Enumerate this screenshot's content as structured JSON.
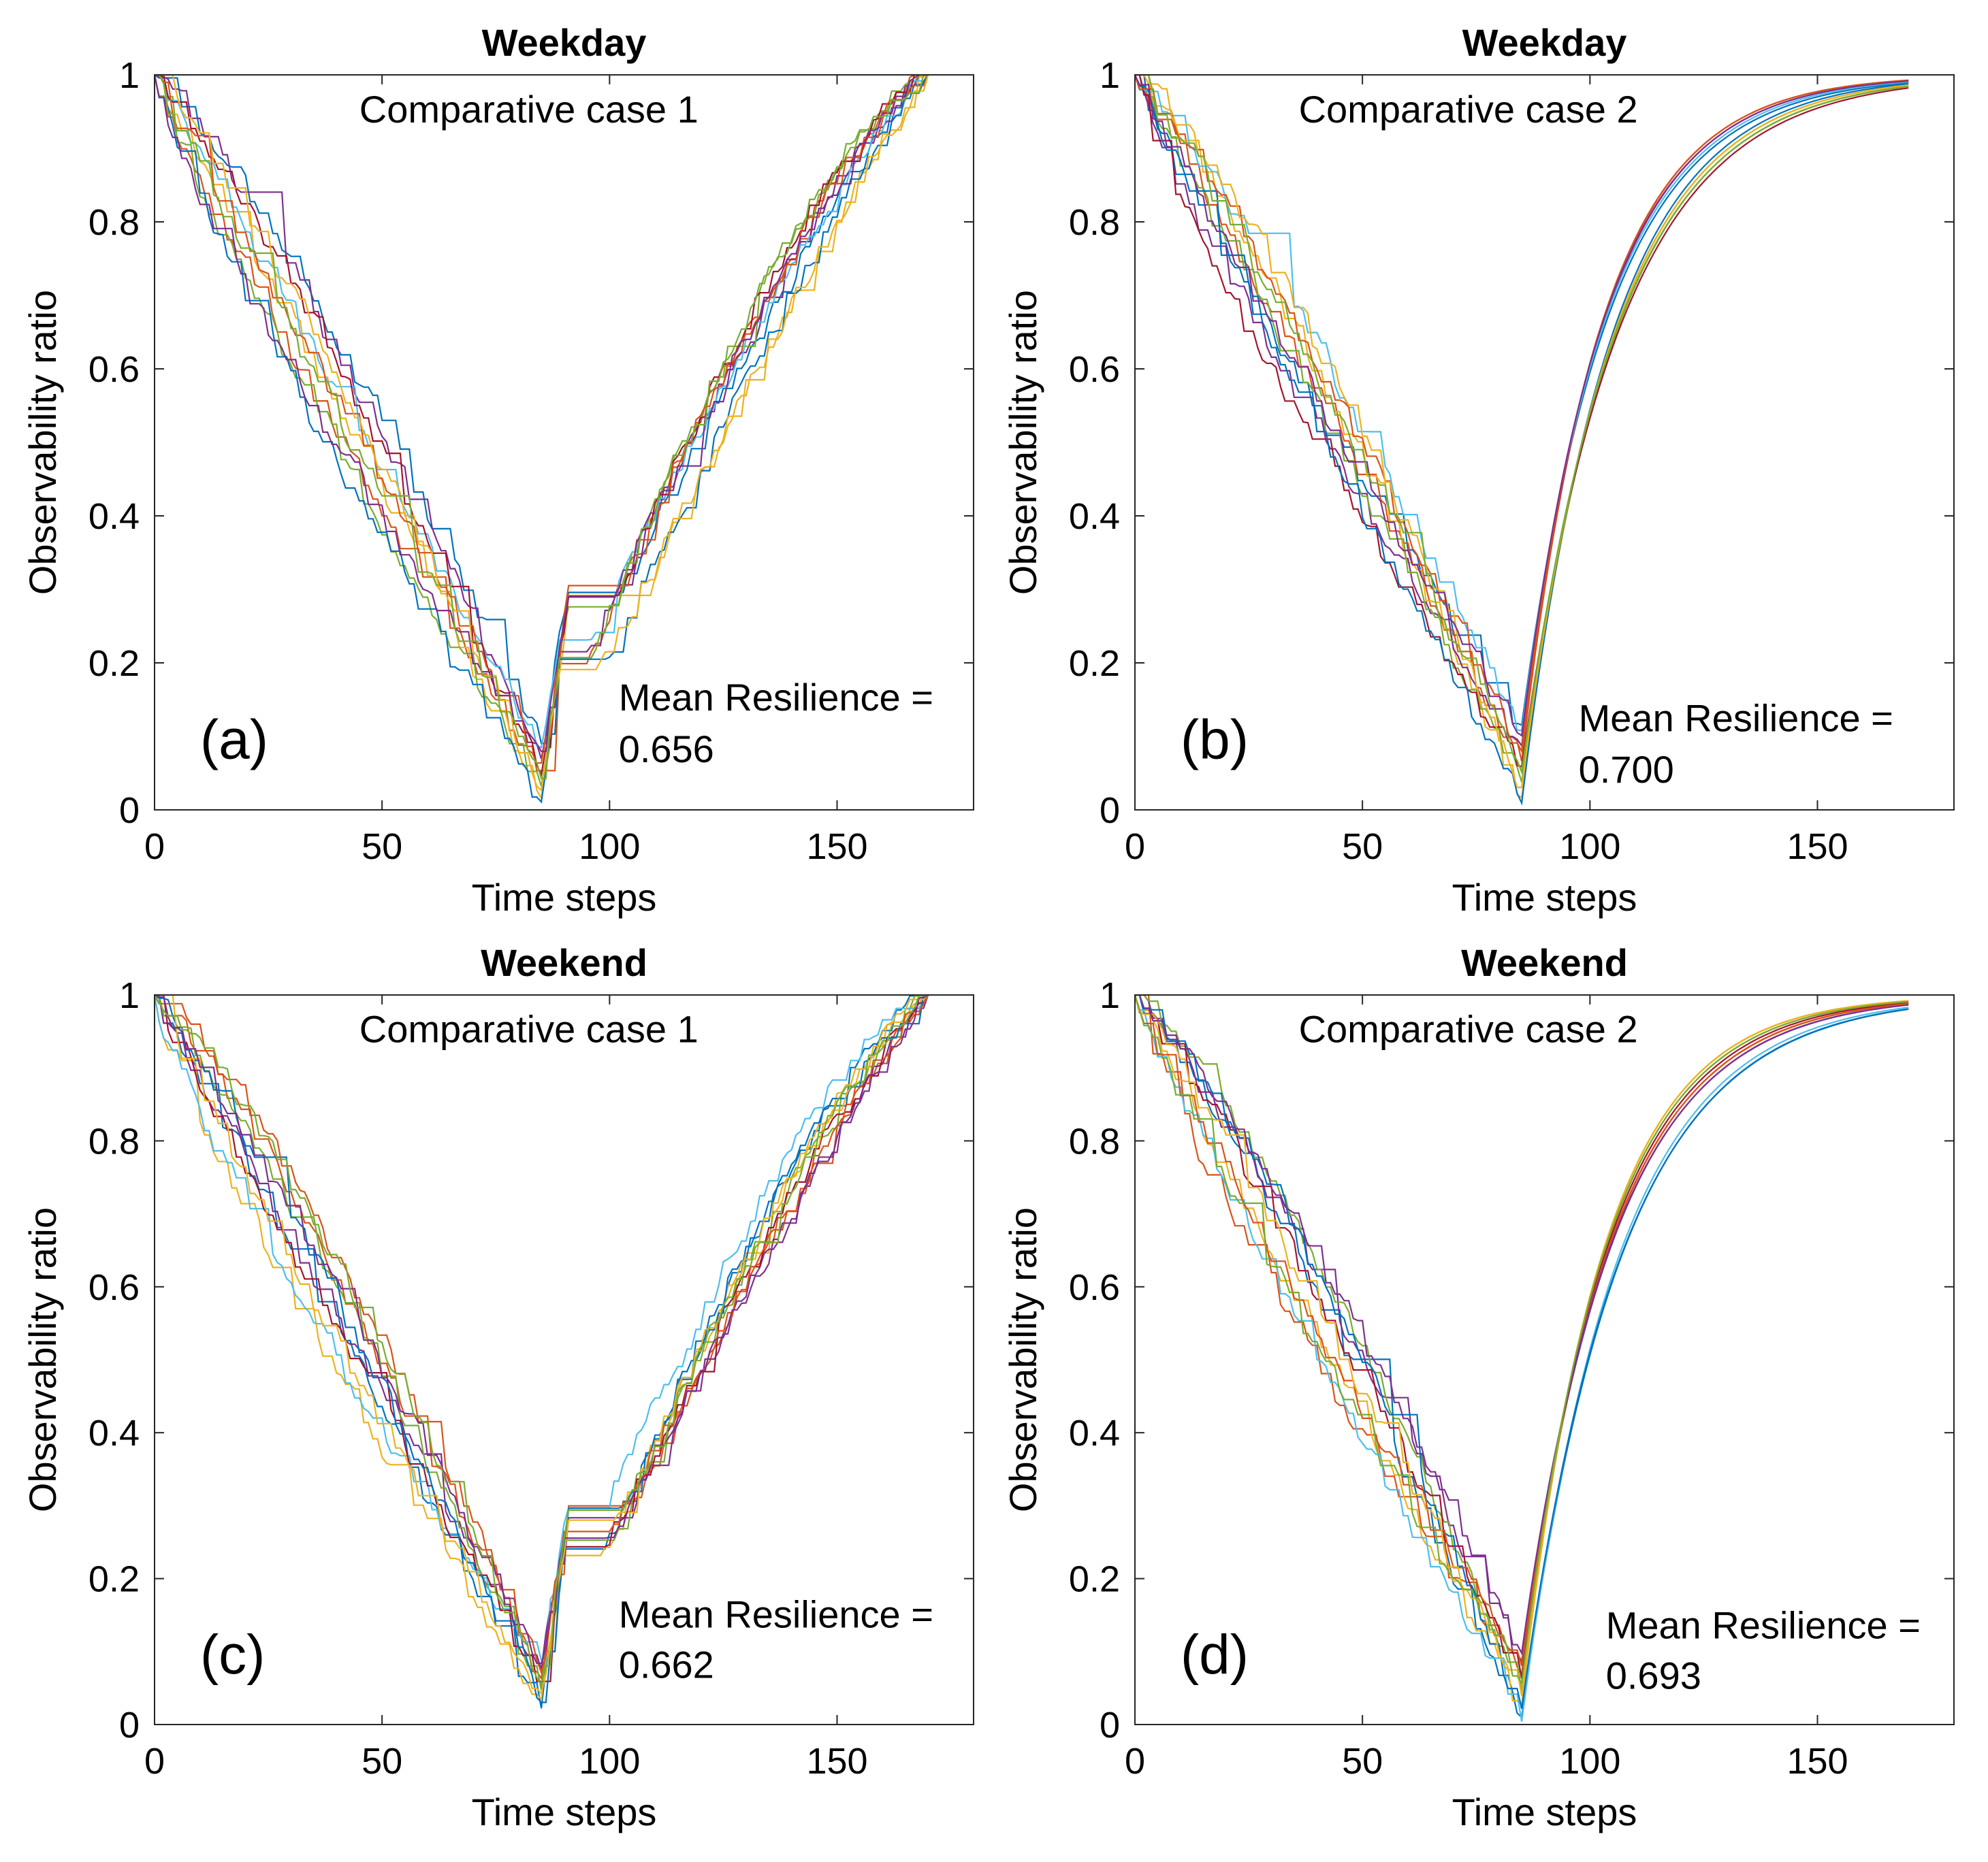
{
  "palette": [
    "#0072BD",
    "#D95319",
    "#EDB120",
    "#7E2F8E",
    "#77AC30",
    "#4DBEEE",
    "#A2142F"
  ],
  "chart_data": [
    {
      "type": "line",
      "panel": "(a)",
      "title": "Weekday",
      "case_label": "Comparative case 1",
      "note_line1": "Mean Resilience =",
      "note_line2": "0.656",
      "xlabel": "Time steps",
      "ylabel": "Observability ratio",
      "xlim": [
        0,
        180
      ],
      "ylim": [
        0,
        1
      ],
      "xticks": [
        0,
        50,
        100,
        150
      ],
      "yticks": [
        0,
        0.2,
        0.4,
        0.6,
        0.8,
        1
      ],
      "ytick_labels": [
        "0",
        "0.2",
        "0.4",
        "0.6",
        "0.8",
        "1"
      ],
      "recovery_shape": "linear",
      "n_series": 12,
      "series_summary": {
        "start": [
          0,
          1
        ],
        "minimum_at_step": 85,
        "minimum_range": [
          0.01,
          0.1
        ],
        "end": [
          170,
          1
        ]
      }
    },
    {
      "type": "line",
      "panel": "(b)",
      "title": "Weekday",
      "case_label": "Comparative case 2",
      "note_line1": "Mean Resilience =",
      "note_line2": "0.700",
      "xlabel": "Time steps",
      "ylabel": "Observability ratio",
      "xlim": [
        0,
        180
      ],
      "ylim": [
        0,
        1
      ],
      "xticks": [
        0,
        50,
        100,
        150
      ],
      "yticks": [
        0,
        0.2,
        0.4,
        0.6,
        0.8,
        1
      ],
      "ytick_labels": [
        "0",
        "0.2",
        "0.4",
        "0.6",
        "0.8",
        "1"
      ],
      "recovery_shape": "exponential",
      "n_series": 12,
      "series_summary": {
        "start": [
          0,
          1
        ],
        "minimum_at_step": 85,
        "minimum_range": [
          0.0,
          0.12
        ],
        "end": [
          170,
          1
        ]
      }
    },
    {
      "type": "line",
      "panel": "(c)",
      "title": "Weekend",
      "case_label": "Comparative case 1",
      "note_line1": "Mean Resilience =",
      "note_line2": "0.662",
      "xlabel": "Time steps",
      "ylabel": "Observability ratio",
      "xlim": [
        0,
        180
      ],
      "ylim": [
        0,
        1
      ],
      "xticks": [
        0,
        50,
        100,
        150
      ],
      "yticks": [
        0,
        0.2,
        0.4,
        0.6,
        0.8,
        1
      ],
      "ytick_labels": [
        "0",
        "0.2",
        "0.4",
        "0.6",
        "0.8",
        "1"
      ],
      "recovery_shape": "linear",
      "n_series": 12,
      "series_summary": {
        "start": [
          0,
          1
        ],
        "minimum_at_step": 85,
        "minimum_range": [
          0.02,
          0.09
        ],
        "end": [
          170,
          1
        ]
      }
    },
    {
      "type": "line",
      "panel": "(d)",
      "title": "Weekend",
      "case_label": "Comparative case 2",
      "note_line1": "Mean Resilience =",
      "note_line2": "0.693",
      "xlabel": "Time steps",
      "ylabel": "Observability ratio",
      "xlim": [
        0,
        180
      ],
      "ylim": [
        0,
        1
      ],
      "xticks": [
        0,
        50,
        100,
        150
      ],
      "yticks": [
        0,
        0.2,
        0.4,
        0.6,
        0.8,
        1
      ],
      "ytick_labels": [
        "0",
        "0.2",
        "0.4",
        "0.6",
        "0.8",
        "1"
      ],
      "recovery_shape": "exponential",
      "n_series": 12,
      "series_summary": {
        "start": [
          0,
          1
        ],
        "minimum_at_step": 85,
        "minimum_range": [
          0.0,
          0.1
        ],
        "end": [
          170,
          1
        ]
      }
    }
  ]
}
